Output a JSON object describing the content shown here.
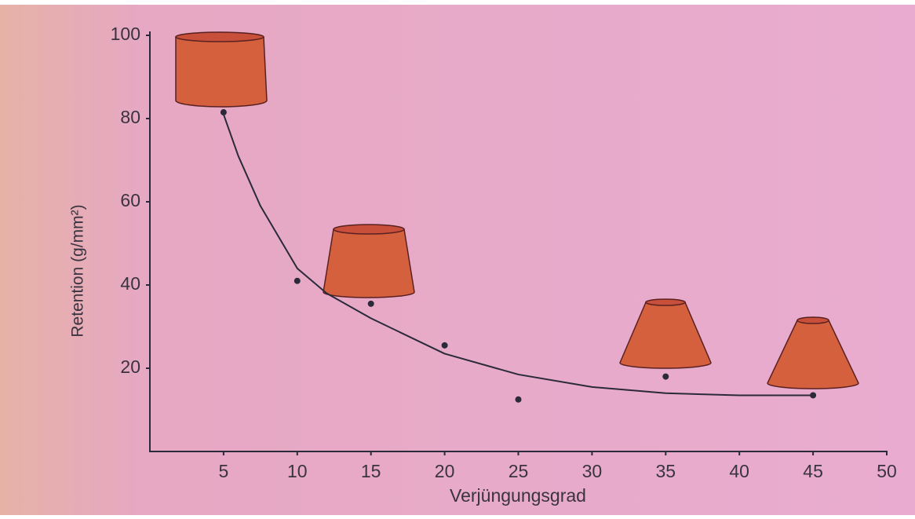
{
  "chart_data": {
    "type": "scatter",
    "x_label": "Verjüngungsgrad",
    "y_label": "Retention (g/mm²)",
    "points": {
      "x": [
        5,
        10,
        15,
        20,
        25,
        35,
        45
      ],
      "y": [
        81.5,
        41,
        35.5,
        25.5,
        12.5,
        18,
        13.5
      ],
      "color": "#2a2a3a"
    },
    "curve": {
      "x": [
        5,
        6,
        7.5,
        10,
        12,
        15,
        20,
        25,
        30,
        35,
        40,
        45
      ],
      "y": [
        81,
        71,
        59,
        44,
        38,
        32,
        23.5,
        18.5,
        15.5,
        14,
        13.5,
        13.5
      ],
      "color": "#2a2a3a"
    },
    "xlim": [
      0,
      50
    ],
    "xticks": [
      5,
      10,
      15,
      20,
      25,
      30,
      35,
      40,
      45,
      50
    ],
    "ylim": [
      0,
      100
    ],
    "yticks": [
      20,
      40,
      60,
      80,
      100
    ],
    "grid": false
  }
}
